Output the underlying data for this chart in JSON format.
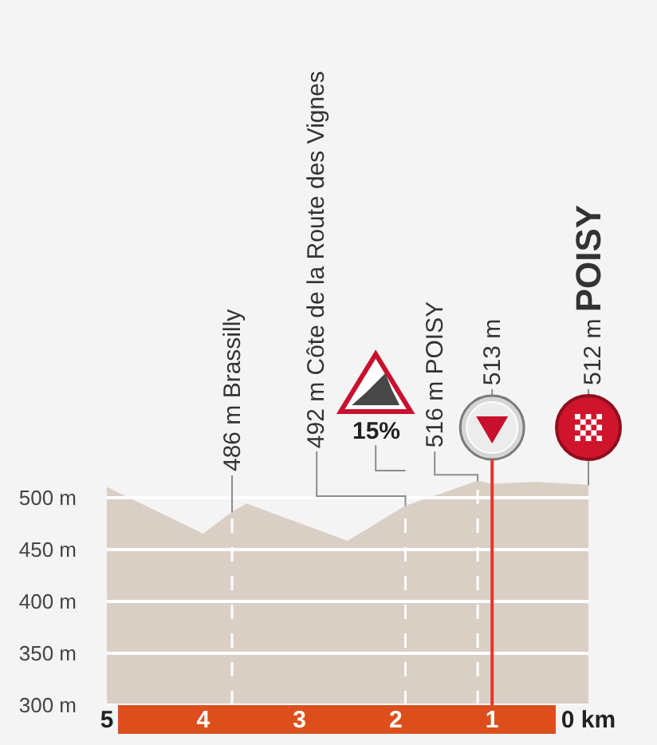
{
  "chart_data": {
    "type": "area",
    "x": [
      5,
      4,
      3.7,
      3.55,
      2.5,
      1.9,
      1.55,
      1.15,
      1,
      0.55,
      0
    ],
    "values": [
      510,
      465,
      486,
      494,
      458,
      492,
      503,
      516,
      513,
      515,
      512
    ],
    "color": "#d9cfc5",
    "xlim": [
      5,
      0
    ],
    "xticks": [
      5,
      4,
      3,
      2,
      1,
      {
        "value": 0,
        "label": "0 km"
      }
    ],
    "ylim": [
      300,
      520
    ],
    "yticks": [
      {
        "value": 300,
        "label": "300 m"
      },
      {
        "value": 350,
        "label": "350 m"
      },
      {
        "value": 400,
        "label": "400 m"
      },
      {
        "value": 450,
        "label": "450 m"
      },
      {
        "value": 500,
        "label": "500 m"
      }
    ],
    "grid": "y",
    "ref_lines": [
      {
        "axis": "x",
        "value": 1,
        "color": "#e5352b"
      }
    ],
    "annotations": [
      {
        "text": "486 m Brassilly",
        "x": 3.7,
        "y": 486
      },
      {
        "text": "492 m Côte de la Route des Vignes",
        "x": 1.9,
        "y": 492
      },
      "15%",
      {
        "text": "516 m POISY",
        "x": 1.15,
        "y": 516
      },
      {
        "text": "513 m",
        "x": 1,
        "y": 513
      },
      {
        "text": "512 m POISY",
        "x": 0,
        "y": 512
      }
    ]
  }
}
